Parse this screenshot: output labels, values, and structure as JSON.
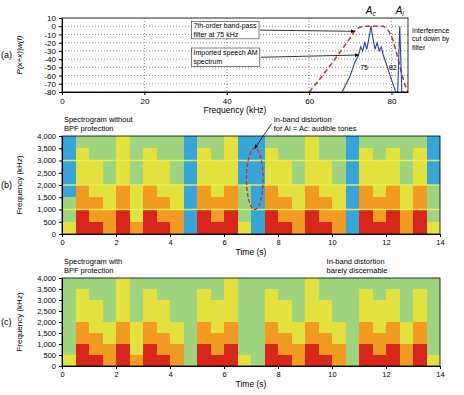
{
  "chart_data": [
    {
      "type": "line",
      "panel": "(a)",
      "x_label": "Frequency (kHz)",
      "y_label": "P(x+x)|w(f)",
      "xlim": [
        0,
        84
      ],
      "xticks": [
        0,
        20,
        40,
        60,
        80
      ],
      "ylim": [
        -80,
        10
      ],
      "yticks": [
        10,
        0,
        -10,
        -20,
        -30,
        -40,
        -50,
        -60,
        -70,
        -80
      ],
      "grid": true,
      "series": [
        {
          "color": "#e0302a",
          "line_style": "dashed",
          "x": [
            60,
            62,
            64,
            66,
            68,
            70,
            71,
            72,
            73,
            78,
            79,
            80,
            81,
            82,
            83,
            84
          ],
          "values": [
            -80,
            -68,
            -55,
            -42,
            -28,
            -14,
            -6,
            -2,
            0,
            0,
            -3,
            -12,
            -28,
            -48,
            -68,
            -80
          ]
        },
        {
          "color": "#2a40a8",
          "line_style": "solid",
          "x": [
            68,
            69,
            70,
            71,
            72,
            72.5,
            73,
            73.5,
            74,
            74.5,
            75,
            75.5,
            76,
            76.5,
            77,
            77.5,
            78,
            79,
            80,
            81,
            81.5,
            82,
            82.5,
            83
          ],
          "values": [
            -80,
            -70,
            -60,
            -45,
            -35,
            -25,
            -30,
            -20,
            -28,
            -15,
            0,
            -15,
            -28,
            -20,
            -30,
            -25,
            -35,
            -50,
            -65,
            -80,
            -80,
            0,
            -80,
            -80
          ]
        }
      ],
      "markers": [
        {
          "x": 75,
          "label": "A",
          "subscript": "c"
        },
        {
          "x": 82,
          "label": "A",
          "subscript": "i"
        }
      ],
      "annotations": [
        {
          "text": [
            "7th-order band-pass",
            "filter at 75 kHz"
          ]
        },
        {
          "text": [
            "Imported speech AM",
            "spectrum"
          ]
        },
        {
          "text": [
            "Interference",
            "cut down by",
            "filter"
          ]
        }
      ]
    },
    {
      "type": "heatmap",
      "panel": "(b)",
      "x_label": "Time (s)",
      "y_label": "Frequency (kHz)",
      "xlim": [
        0,
        14
      ],
      "xticks": [
        0,
        2,
        4,
        6,
        8,
        10,
        12,
        14
      ],
      "ylim": [
        0,
        4000
      ],
      "yticks": [
        0,
        500,
        {
          "value": 1000,
          "label": "1,000"
        },
        {
          "value": 1500,
          "label": "1,500"
        },
        {
          "value": 2000,
          "label": "2,000"
        },
        {
          "value": 2500,
          "label": "2,500"
        },
        {
          "value": 3000,
          "label": "3,000"
        },
        {
          "value": 3500,
          "label": "3,500"
        },
        {
          "value": 4000,
          "label": "4,000"
        }
      ],
      "x_edges": [
        0,
        0.5,
        1,
        1.5,
        2,
        2.5,
        3,
        3.5,
        4,
        4.5,
        5,
        5.5,
        6,
        6.5,
        7,
        7.5,
        8,
        8.5,
        9,
        9.5,
        10,
        10.5,
        11,
        11.5,
        12,
        12.5,
        13,
        13.5,
        14
      ],
      "y_edges": [
        0,
        500,
        1000,
        1500,
        2000,
        2500,
        3000,
        3500,
        4000
      ],
      "cells": [
        [
          2,
          4,
          4,
          3,
          4,
          3,
          4,
          4,
          3,
          0,
          4,
          4,
          4,
          2,
          0,
          4,
          4,
          3,
          4,
          4,
          3,
          0,
          4,
          4,
          4,
          3,
          4,
          2
        ],
        [
          1,
          4,
          3,
          3,
          4,
          2,
          4,
          3,
          3,
          0,
          4,
          3,
          4,
          1,
          0,
          4,
          3,
          3,
          4,
          3,
          3,
          0,
          4,
          3,
          4,
          3,
          4,
          1
        ],
        [
          1,
          3,
          3,
          2,
          3,
          2,
          3,
          3,
          2,
          0,
          3,
          3,
          3,
          1,
          0,
          3,
          3,
          2,
          3,
          3,
          2,
          0,
          3,
          3,
          3,
          2,
          3,
          1
        ],
        [
          0,
          3,
          2,
          2,
          3,
          2,
          3,
          2,
          2,
          0,
          3,
          2,
          3,
          1,
          0,
          3,
          2,
          2,
          3,
          2,
          2,
          0,
          3,
          2,
          3,
          2,
          3,
          1
        ],
        [
          0,
          2,
          2,
          1,
          2,
          1,
          2,
          2,
          1,
          0,
          2,
          2,
          2,
          0,
          0,
          2,
          2,
          1,
          2,
          2,
          1,
          0,
          2,
          2,
          2,
          1,
          2,
          0
        ],
        [
          0,
          2,
          2,
          1,
          2,
          1,
          2,
          2,
          1,
          0,
          2,
          2,
          2,
          0,
          0,
          2,
          2,
          1,
          2,
          2,
          1,
          0,
          2,
          2,
          2,
          1,
          2,
          0
        ],
        [
          0,
          2,
          1,
          1,
          2,
          1,
          2,
          1,
          1,
          0,
          2,
          1,
          2,
          0,
          0,
          2,
          1,
          1,
          2,
          1,
          1,
          0,
          2,
          1,
          2,
          1,
          2,
          0
        ],
        [
          0,
          1,
          1,
          1,
          2,
          1,
          1,
          1,
          1,
          0,
          1,
          1,
          2,
          0,
          0,
          1,
          1,
          1,
          2,
          1,
          1,
          0,
          1,
          1,
          1,
          1,
          1,
          0
        ]
      ],
      "tones": [
        1000,
        2000,
        3000
      ],
      "annotations": [
        {
          "text": [
            "Spectrogram without",
            "BPF protection"
          ]
        },
        {
          "text": [
            "In-band distortion",
            "for Ai = Ac: audible tones"
          ]
        }
      ]
    },
    {
      "type": "heatmap",
      "panel": "(c)",
      "x_label": "Time (s)",
      "y_label": "Frequency (kHz)",
      "xlim": [
        0,
        14
      ],
      "xticks": [
        0,
        2,
        4,
        6,
        8,
        10,
        12,
        14
      ],
      "ylim": [
        0,
        4000
      ],
      "yticks": [
        0,
        500,
        {
          "value": 1000,
          "label": "1,000"
        },
        {
          "value": 1500,
          "label": "1,500"
        },
        {
          "value": 2000,
          "label": "2,000"
        },
        {
          "value": 2500,
          "label": "2,500"
        },
        {
          "value": 3000,
          "label": "3,000"
        },
        {
          "value": 3500,
          "label": "3,500"
        },
        {
          "value": 4000,
          "label": "4,000"
        }
      ],
      "x_edges": [
        0,
        0.5,
        1,
        1.5,
        2,
        2.5,
        3,
        3.5,
        4,
        4.5,
        5,
        5.5,
        6,
        6.5,
        7,
        7.5,
        8,
        8.5,
        9,
        9.5,
        10,
        10.5,
        11,
        11.5,
        12,
        12.5,
        13,
        13.5,
        14
      ],
      "y_edges": [
        0,
        500,
        1000,
        1500,
        2000,
        2500,
        3000,
        3500,
        4000
      ],
      "cells": [
        [
          2,
          4,
          4,
          3,
          4,
          3,
          4,
          4,
          3,
          1,
          4,
          4,
          4,
          2,
          1,
          4,
          4,
          3,
          4,
          4,
          3,
          1,
          4,
          4,
          4,
          3,
          4,
          2
        ],
        [
          1,
          4,
          3,
          3,
          4,
          2,
          4,
          3,
          3,
          1,
          4,
          3,
          4,
          1,
          1,
          4,
          3,
          3,
          4,
          3,
          3,
          1,
          4,
          3,
          4,
          3,
          4,
          1
        ],
        [
          1,
          3,
          3,
          2,
          3,
          2,
          3,
          3,
          2,
          1,
          3,
          3,
          3,
          1,
          1,
          3,
          3,
          2,
          3,
          3,
          2,
          1,
          3,
          3,
          3,
          2,
          3,
          1
        ],
        [
          1,
          3,
          2,
          2,
          3,
          2,
          3,
          2,
          2,
          1,
          3,
          2,
          3,
          1,
          1,
          3,
          2,
          2,
          3,
          2,
          2,
          1,
          3,
          2,
          3,
          2,
          3,
          1
        ],
        [
          1,
          2,
          2,
          1,
          2,
          1,
          2,
          2,
          1,
          1,
          2,
          2,
          2,
          1,
          1,
          2,
          2,
          1,
          2,
          2,
          1,
          1,
          2,
          2,
          2,
          1,
          2,
          1
        ],
        [
          1,
          2,
          2,
          1,
          2,
          1,
          2,
          2,
          1,
          1,
          2,
          2,
          2,
          1,
          1,
          2,
          2,
          1,
          2,
          2,
          1,
          1,
          2,
          2,
          2,
          1,
          2,
          1
        ],
        [
          1,
          2,
          1,
          1,
          2,
          1,
          2,
          1,
          1,
          1,
          2,
          1,
          2,
          1,
          1,
          2,
          1,
          1,
          2,
          1,
          1,
          1,
          2,
          1,
          2,
          1,
          2,
          1
        ],
        [
          1,
          1,
          1,
          1,
          2,
          1,
          1,
          1,
          1,
          1,
          1,
          1,
          2,
          1,
          1,
          1,
          1,
          1,
          2,
          1,
          1,
          1,
          1,
          1,
          1,
          1,
          1,
          1
        ]
      ],
      "annotations": [
        {
          "text": [
            "Spectrogram with",
            "BPF protection"
          ]
        },
        {
          "text": [
            "In-band distortion",
            "barely discernable"
          ]
        }
      ]
    }
  ]
}
